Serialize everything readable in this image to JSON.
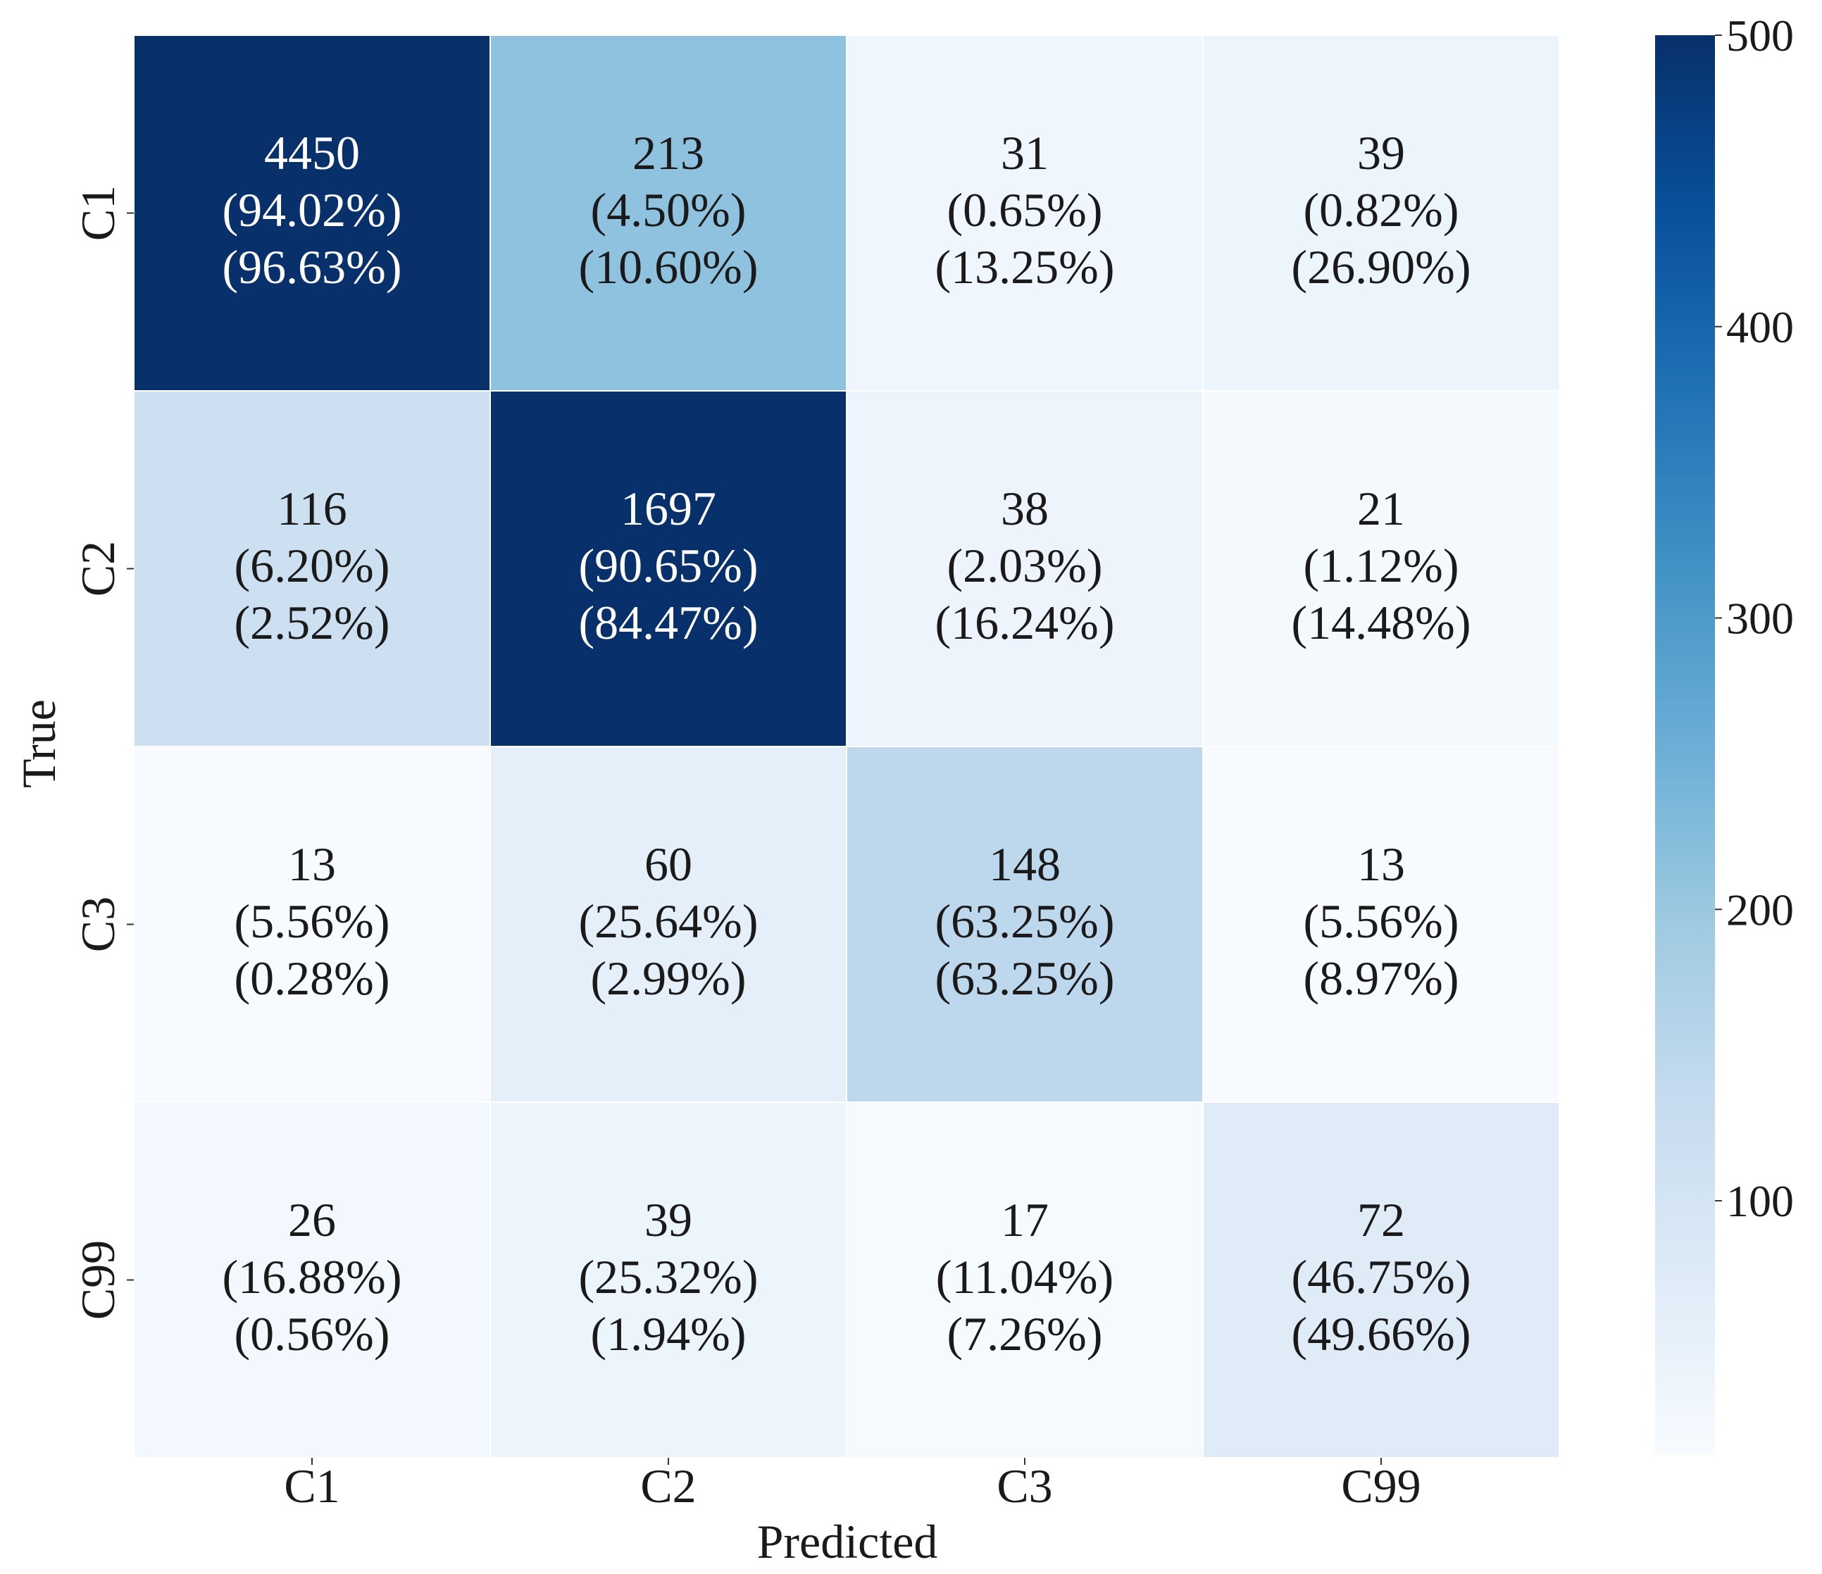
{
  "chart_data": {
    "type": "heatmap",
    "title": "",
    "xlabel": "Predicted",
    "ylabel": "True",
    "x_categories": [
      "C1",
      "C2",
      "C3",
      "C99"
    ],
    "y_categories": [
      "C1",
      "C2",
      "C3",
      "C99"
    ],
    "values": [
      [
        4450,
        213,
        31,
        39
      ],
      [
        116,
        1697,
        38,
        21
      ],
      [
        13,
        60,
        148,
        13
      ],
      [
        26,
        39,
        17,
        72
      ]
    ],
    "row_percent": [
      [
        "94.02%",
        "4.50%",
        "0.65%",
        "0.82%"
      ],
      [
        "6.20%",
        "90.65%",
        "2.03%",
        "1.12%"
      ],
      [
        "5.56%",
        "25.64%",
        "63.25%",
        "5.56%"
      ],
      [
        "16.88%",
        "25.32%",
        "11.04%",
        "46.75%"
      ]
    ],
    "col_percent": [
      [
        "96.63%",
        "10.60%",
        "13.25%",
        "26.90%"
      ],
      [
        "2.52%",
        "84.47%",
        "16.24%",
        "14.48%"
      ],
      [
        "0.28%",
        "2.99%",
        "63.25%",
        "8.97%"
      ],
      [
        "0.56%",
        "1.94%",
        "7.26%",
        "49.66%"
      ]
    ],
    "colorbar": {
      "colormap": "Blues",
      "range": [
        13,
        500
      ],
      "ticks": [
        100,
        200,
        300,
        400,
        500
      ],
      "tick_labels": [
        "100",
        "200",
        "300",
        "400",
        "500"
      ]
    }
  }
}
